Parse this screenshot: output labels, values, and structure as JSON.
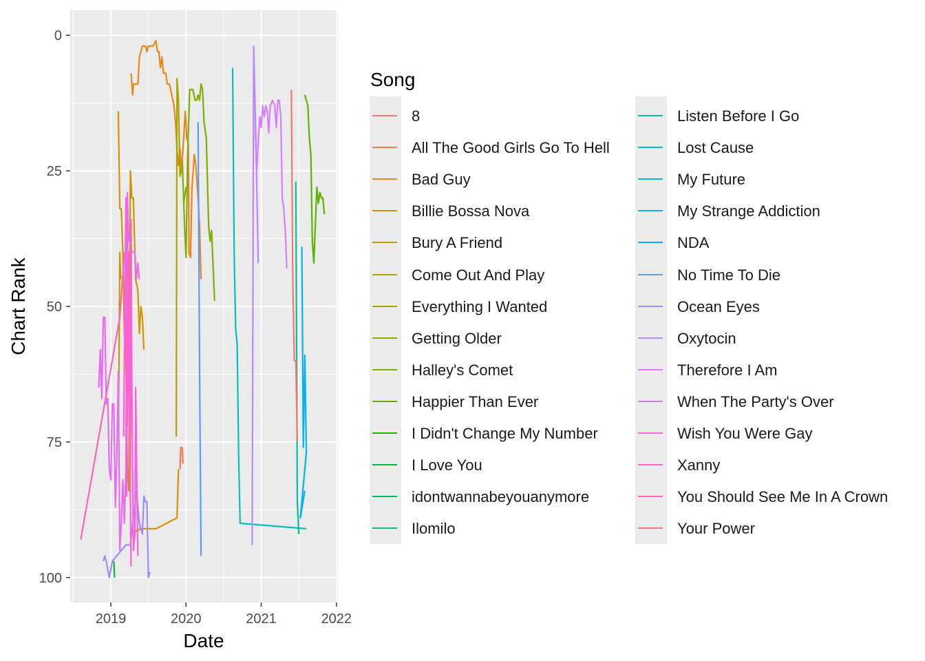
{
  "chart_data": {
    "type": "line",
    "xlabel": "Date",
    "ylabel": "Chart Rank",
    "xlim": [
      2018.46,
      2022.02
    ],
    "ylim": [
      104.6,
      -4.6
    ],
    "y_reversed": true,
    "xticks": [
      2019,
      2020,
      2021,
      2022
    ],
    "yticks": [
      0,
      25,
      50,
      75,
      100
    ],
    "grid": true,
    "legend_title": "Song",
    "legend_position": "right",
    "series": [
      {
        "name": "8",
        "color": "#F8766D",
        "points": []
      },
      {
        "name": "All The Good Girls Go To Hell",
        "color": "#F17D50",
        "points": [
          [
            2019.92,
            80
          ],
          [
            2019.93,
            76
          ],
          [
            2019.95,
            76
          ],
          [
            2019.96,
            79
          ]
        ]
      },
      {
        "name": "Bad Guy",
        "color": "#E7861B",
        "points": [
          [
            2019.27,
            7
          ],
          [
            2019.29,
            11
          ],
          [
            2019.3,
            9
          ],
          [
            2019.36,
            9
          ],
          [
            2019.38,
            4
          ],
          [
            2019.42,
            2
          ],
          [
            2019.46,
            2
          ],
          [
            2019.48,
            3
          ],
          [
            2019.5,
            2
          ],
          [
            2019.56,
            2
          ],
          [
            2019.6,
            1
          ],
          [
            2019.62,
            3
          ],
          [
            2019.64,
            3
          ],
          [
            2019.66,
            6
          ],
          [
            2019.68,
            4
          ],
          [
            2019.7,
            7
          ],
          [
            2019.73,
            7
          ],
          [
            2019.75,
            9
          ],
          [
            2019.78,
            9
          ],
          [
            2019.81,
            11
          ],
          [
            2019.84,
            13
          ],
          [
            2019.86,
            16
          ],
          [
            2019.88,
            21
          ],
          [
            2019.9,
            24
          ],
          [
            2019.92,
            21
          ],
          [
            2019.94,
            25
          ],
          [
            2019.96,
            21
          ],
          [
            2019.99,
            14
          ],
          [
            2020.01,
            19
          ],
          [
            2020.03,
            20
          ],
          [
            2020.04,
            40
          ],
          [
            2020.06,
            41
          ],
          [
            2020.08,
            28
          ],
          [
            2020.11,
            22
          ],
          [
            2020.13,
            24
          ],
          [
            2020.16,
            30
          ],
          [
            2020.18,
            35
          ],
          [
            2020.2,
            45
          ]
        ]
      },
      {
        "name": "Billie Bossa Nova",
        "color": "#DB8E00",
        "points": [
          [
            2019.25,
            92
          ],
          [
            2019.4,
            91
          ],
          [
            2019.6,
            91
          ],
          [
            2019.88,
            89
          ],
          [
            2019.9,
            80
          ]
        ]
      },
      {
        "name": "Bury A Friend",
        "color": "#CF9400",
        "points": [
          [
            2019.1,
            14
          ],
          [
            2019.12,
            32
          ],
          [
            2019.14,
            32
          ],
          [
            2019.16,
            40
          ],
          [
            2019.18,
            55
          ],
          [
            2019.2,
            60
          ],
          [
            2019.22,
            80
          ],
          [
            2019.24,
            84
          ],
          [
            2019.26,
            25
          ],
          [
            2019.28,
            30
          ],
          [
            2019.3,
            30
          ],
          [
            2019.33,
            45
          ],
          [
            2019.36,
            47
          ],
          [
            2019.38,
            55
          ],
          [
            2019.4,
            50
          ],
          [
            2019.42,
            52
          ],
          [
            2019.44,
            58
          ]
        ]
      },
      {
        "name": "Come Out And Play",
        "color": "#C09B00",
        "points": [
          [
            2019.1,
            72
          ],
          [
            2019.11,
            60
          ],
          [
            2019.12,
            40
          ],
          [
            2019.13,
            45
          ]
        ]
      },
      {
        "name": "Everything I Wanted",
        "color": "#AEA200",
        "points": [
          [
            2019.87,
            74
          ],
          [
            2019.88,
            8
          ],
          [
            2019.9,
            12
          ],
          [
            2019.92,
            26
          ],
          [
            2019.94,
            25
          ]
        ]
      },
      {
        "name": "Getting Older",
        "color": "#99A800",
        "points": [
          [
            2019.97,
            31
          ],
          [
            2020.0,
            28
          ]
        ]
      },
      {
        "name": "Halley's Comet",
        "color": "#7FAD00",
        "points": [
          [
            2019.95,
            23
          ],
          [
            2019.98,
            35
          ],
          [
            2020.0,
            41
          ],
          [
            2020.02,
            22
          ],
          [
            2020.05,
            10
          ],
          [
            2020.09,
            10
          ],
          [
            2020.12,
            12
          ],
          [
            2020.14,
            12
          ],
          [
            2020.16,
            11
          ],
          [
            2020.18,
            12
          ],
          [
            2020.2,
            9
          ],
          [
            2020.22,
            10
          ],
          [
            2020.24,
            16
          ],
          [
            2020.27,
            19
          ],
          [
            2020.3,
            35
          ],
          [
            2020.32,
            38
          ],
          [
            2020.34,
            36
          ],
          [
            2020.38,
            49
          ]
        ]
      },
      {
        "name": "Happier Than Ever",
        "color": "#5BB300",
        "points": [
          [
            2021.58,
            11
          ],
          [
            2021.62,
            13
          ],
          [
            2021.64,
            19
          ],
          [
            2021.66,
            22
          ],
          [
            2021.68,
            38
          ],
          [
            2021.7,
            42
          ],
          [
            2021.72,
            35
          ],
          [
            2021.74,
            28
          ],
          [
            2021.76,
            31
          ],
          [
            2021.78,
            29
          ],
          [
            2021.8,
            30
          ],
          [
            2021.82,
            30
          ],
          [
            2021.84,
            33
          ]
        ]
      },
      {
        "name": "I Didn't Change My Number",
        "color": "#1BB700",
        "points": []
      },
      {
        "name": "I Love You",
        "color": "#00BA38",
        "points": [
          [
            2019.04,
            97
          ],
          [
            2019.05,
            100
          ]
        ]
      },
      {
        "name": "idontwannabeyouanymore",
        "color": "#00BC67",
        "points": []
      },
      {
        "name": "Ilomilo",
        "color": "#00BE86",
        "points": []
      },
      {
        "name": "Listen Before I Go",
        "color": "#00C0A0",
        "points": [
          [
            2021.46,
            27
          ],
          [
            2021.48,
            86
          ],
          [
            2021.5,
            92
          ]
        ]
      },
      {
        "name": "Lost Cause",
        "color": "#00C0B8",
        "points": [
          [
            2020.62,
            6
          ],
          [
            2020.64,
            40
          ],
          [
            2020.66,
            54
          ],
          [
            2020.68,
            57
          ],
          [
            2020.7,
            78
          ],
          [
            2020.72,
            90
          ],
          [
            2021.6,
            91
          ]
        ]
      },
      {
        "name": "My Future",
        "color": "#00BCD5",
        "points": []
      },
      {
        "name": "My Strange Addiction",
        "color": "#00B4EF",
        "points": [
          [
            2021.54,
            39
          ],
          [
            2021.56,
            76
          ],
          [
            2021.58,
            59
          ],
          [
            2021.6,
            77
          ],
          [
            2021.52,
            89
          ],
          [
            2021.58,
            84
          ]
        ]
      },
      {
        "name": "NDA",
        "color": "#00A6FF",
        "points": []
      },
      {
        "name": "No Time To Die",
        "color": "#5A9AFF",
        "points": [
          [
            2020.16,
            16
          ],
          [
            2020.18,
            60
          ],
          [
            2020.2,
            96
          ]
        ]
      },
      {
        "name": "Ocean Eyes",
        "color": "#9A8CFF",
        "points": [
          [
            2018.9,
            97
          ],
          [
            2018.92,
            96
          ],
          [
            2018.94,
            97
          ],
          [
            2018.98,
            100
          ],
          [
            2019.02,
            97
          ],
          [
            2019.2,
            94
          ],
          [
            2019.26,
            94
          ],
          [
            2019.34,
            84
          ],
          [
            2019.38,
            90
          ],
          [
            2019.42,
            92
          ],
          [
            2019.44,
            85
          ],
          [
            2019.46,
            86
          ],
          [
            2019.48,
            86
          ],
          [
            2019.5,
            100
          ],
          [
            2019.52,
            99
          ]
        ]
      },
      {
        "name": "Oxytocin",
        "color": "#BA85FF",
        "points": [
          [
            2020.88,
            94
          ],
          [
            2020.9,
            2
          ],
          [
            2020.93,
            20
          ],
          [
            2020.96,
            42
          ]
        ]
      },
      {
        "name": "Therefore I Am",
        "color": "#D57FFF",
        "points": [
          [
            2020.92,
            17
          ],
          [
            2020.94,
            25
          ],
          [
            2020.98,
            15
          ],
          [
            2021.0,
            17
          ],
          [
            2021.02,
            13
          ],
          [
            2021.04,
            15
          ],
          [
            2021.06,
            13
          ],
          [
            2021.08,
            14
          ],
          [
            2021.1,
            18
          ],
          [
            2021.12,
            13
          ],
          [
            2021.15,
            12
          ],
          [
            2021.18,
            13
          ],
          [
            2021.2,
            17
          ],
          [
            2021.22,
            12
          ],
          [
            2021.24,
            12
          ],
          [
            2021.26,
            15
          ],
          [
            2021.28,
            30
          ],
          [
            2021.3,
            32
          ],
          [
            2021.32,
            36
          ],
          [
            2021.34,
            43
          ]
        ]
      },
      {
        "name": "When The Party's Over",
        "color": "#E76BF3",
        "points": [
          [
            2018.84,
            65
          ],
          [
            2018.86,
            58
          ],
          [
            2018.88,
            67
          ],
          [
            2018.9,
            52
          ],
          [
            2018.92,
            52
          ],
          [
            2018.94,
            68
          ],
          [
            2018.96,
            67
          ],
          [
            2018.98,
            80
          ],
          [
            2019.0,
            82
          ],
          [
            2019.02,
            68
          ],
          [
            2019.04,
            68
          ],
          [
            2019.06,
            87
          ],
          [
            2019.08,
            78
          ],
          [
            2019.1,
            62
          ],
          [
            2019.12,
            95
          ],
          [
            2019.14,
            90
          ],
          [
            2019.16,
            82
          ],
          [
            2019.18,
            90
          ],
          [
            2019.2,
            80
          ],
          [
            2019.22,
            29
          ],
          [
            2019.24,
            38
          ],
          [
            2019.26,
            38
          ],
          [
            2019.28,
            40
          ],
          [
            2019.32,
            40
          ],
          [
            2019.34,
            45
          ],
          [
            2019.36,
            42
          ],
          [
            2019.38,
            45
          ]
        ]
      },
      {
        "name": "Wish You Were Gay",
        "color": "#F563DF",
        "points": [
          [
            2019.17,
            74
          ],
          [
            2019.2,
            30
          ],
          [
            2019.21,
            85
          ],
          [
            2019.22,
            34
          ],
          [
            2019.24,
            60
          ],
          [
            2019.26,
            85
          ],
          [
            2019.27,
            34
          ],
          [
            2019.28,
            65
          ],
          [
            2019.3,
            95
          ],
          [
            2019.32,
            92
          ],
          [
            2019.33,
            65
          ],
          [
            2019.36,
            96
          ]
        ]
      },
      {
        "name": "Xanny",
        "color": "#FD61D1",
        "points": [
          [
            2019.2,
            52
          ],
          [
            2019.22,
            72
          ],
          [
            2019.24,
            40
          ],
          [
            2019.25,
            72
          ],
          [
            2019.27,
            98
          ]
        ]
      },
      {
        "name": "You Should See Me In A Crown",
        "color": "#FF62BC",
        "points": [
          [
            2018.6,
            93
          ],
          [
            2019.12,
            52
          ],
          [
            2019.18,
            40
          ]
        ]
      },
      {
        "name": "Your Power",
        "color": "#F8766D",
        "points": [
          [
            2021.4,
            10
          ],
          [
            2021.42,
            45
          ],
          [
            2021.44,
            60
          ],
          [
            2021.46,
            60
          ],
          [
            2021.48,
            75
          ]
        ]
      }
    ]
  }
}
